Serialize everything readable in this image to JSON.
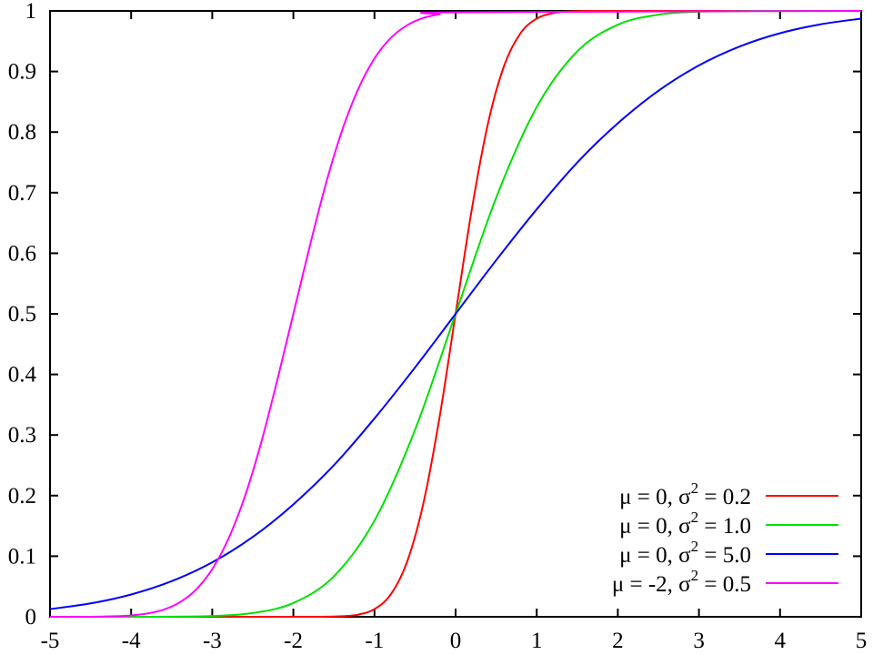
{
  "chart_data": {
    "type": "line",
    "title": "",
    "xlabel": "",
    "ylabel": "",
    "xlim": [
      -5,
      5
    ],
    "ylim": [
      0,
      1
    ],
    "grid": false,
    "legend_position": "bottom-right",
    "x_ticks": [
      "-5",
      "-4",
      "-3",
      "-2",
      "-1",
      "0",
      "1",
      "2",
      "3",
      "4",
      "5"
    ],
    "y_ticks": [
      "0",
      "0.1",
      "0.2",
      "0.3",
      "0.4",
      "0.5",
      "0.6",
      "0.7",
      "0.8",
      "0.9",
      "1"
    ],
    "x_tick_values": [
      -5,
      -4,
      -3,
      -2,
      -1,
      0,
      1,
      2,
      3,
      4,
      5
    ],
    "y_tick_values": [
      0,
      0.1,
      0.2,
      0.3,
      0.4,
      0.5,
      0.6,
      0.7,
      0.8,
      0.9,
      1
    ],
    "series": [
      {
        "legend_mu": "μ =  0, σ",
        "legend_sup": "2",
        "legend_tail": " = 0.2",
        "color": "#ff0000",
        "x": [
          -5,
          -2,
          -1.6,
          -1.4,
          -1.2,
          -1,
          -0.8,
          -0.6,
          -0.4,
          -0.2,
          0,
          0.2,
          0.4,
          0.6,
          0.8,
          1,
          1.2,
          1.4,
          1.6,
          2,
          5
        ],
        "y": [
          0,
          0,
          0.0002,
          0.0009,
          0.0036,
          0.0127,
          0.0368,
          0.0899,
          0.1855,
          0.3274,
          0.5,
          0.6726,
          0.8145,
          0.9101,
          0.9632,
          0.9873,
          0.9964,
          0.9991,
          0.9998,
          1,
          1
        ]
      },
      {
        "legend_mu": "μ =  0, σ",
        "legend_sup": "2",
        "legend_tail": " = 1.0",
        "color": "#00e000",
        "x": [
          -5,
          -4,
          -3.5,
          -3,
          -2.5,
          -2,
          -1.5,
          -1,
          -0.5,
          0,
          0.5,
          1,
          1.5,
          2,
          2.5,
          3,
          3.5,
          4,
          5
        ],
        "y": [
          0,
          0,
          0.0002,
          0.0013,
          0.0062,
          0.0228,
          0.0668,
          0.1587,
          0.3085,
          0.5,
          0.6915,
          0.8413,
          0.9332,
          0.9772,
          0.9938,
          0.9987,
          0.9998,
          1,
          1
        ]
      },
      {
        "legend_mu": "μ =  0, σ",
        "legend_sup": "2",
        "legend_tail": " = 5.0",
        "color": "#0000ff",
        "x": [
          -5,
          -4.5,
          -4,
          -3.5,
          -3,
          -2.5,
          -2,
          -1.5,
          -1,
          -0.5,
          0,
          0.5,
          1,
          1.5,
          2,
          2.5,
          3,
          3.5,
          4,
          4.5,
          5
        ],
        "y": [
          0.0127,
          0.0221,
          0.0368,
          0.0588,
          0.0899,
          0.1318,
          0.1855,
          0.2502,
          0.3274,
          0.4115,
          0.5,
          0.5885,
          0.6726,
          0.7498,
          0.8145,
          0.8682,
          0.9101,
          0.9412,
          0.9632,
          0.9779,
          0.9873
        ]
      },
      {
        "legend_mu": "μ = -2, σ",
        "legend_sup": "2",
        "legend_tail": " = 0.5",
        "color": "#ff00ff",
        "x": [
          -5,
          -4.5,
          -4.2,
          -4,
          -3.8,
          -3.6,
          -3.4,
          -3.2,
          -3,
          -2.8,
          -2.6,
          -2.4,
          -2.2,
          -2,
          -1.8,
          -1.6,
          -1.4,
          -1.2,
          -1,
          -0.8,
          -0.6,
          -0.4,
          -0.2,
          0,
          5
        ],
        "y": [
          0,
          0,
          0.0009,
          0.0023,
          0.0055,
          0.0118,
          0.0239,
          0.0448,
          0.0786,
          0.1289,
          0.1977,
          0.2858,
          0.3897,
          0.5,
          0.6103,
          0.7142,
          0.8023,
          0.8711,
          0.9214,
          0.9552,
          0.9761,
          0.9882,
          0.9945,
          0.9977,
          1
        ]
      }
    ]
  }
}
